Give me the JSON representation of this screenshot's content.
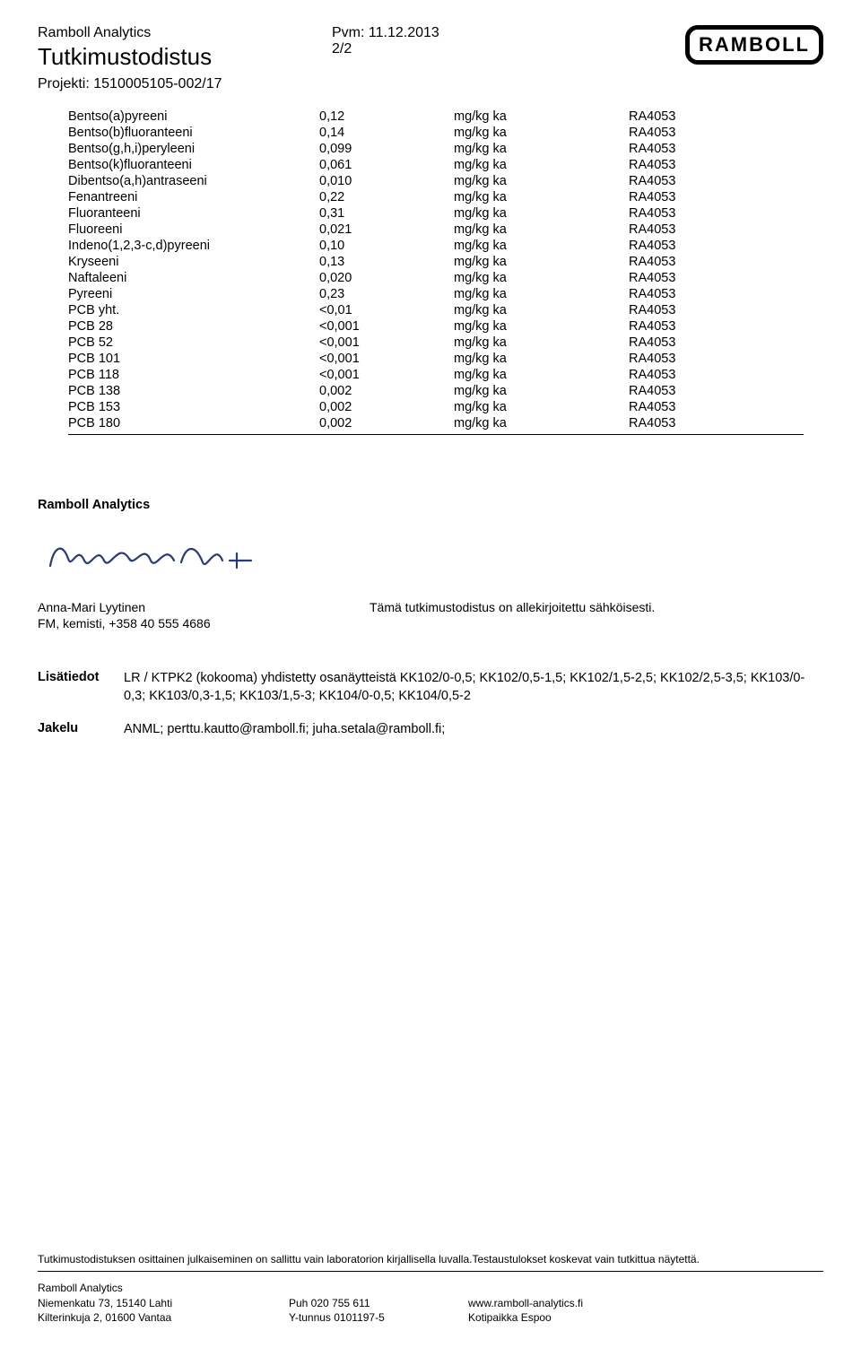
{
  "header": {
    "company": "Ramboll Analytics",
    "doc_title": "Tutkimustodistus",
    "project_label": "Projekti: 1510005105-002/17",
    "pvm_label": "Pvm: 11.12.2013",
    "page": "2/2",
    "logo_text": "RAMBOLL"
  },
  "table": {
    "rows": [
      {
        "name": "Bentso(a)pyreeni",
        "value": "0,12",
        "unit": "mg/kg ka",
        "code": "RA4053"
      },
      {
        "name": "Bentso(b)fluoranteeni",
        "value": "0,14",
        "unit": "mg/kg ka",
        "code": "RA4053"
      },
      {
        "name": "Bentso(g,h,i)peryleeni",
        "value": "0,099",
        "unit": "mg/kg ka",
        "code": "RA4053"
      },
      {
        "name": "Bentso(k)fluoranteeni",
        "value": "0,061",
        "unit": "mg/kg ka",
        "code": "RA4053"
      },
      {
        "name": "Dibentso(a,h)antraseeni",
        "value": "0,010",
        "unit": "mg/kg ka",
        "code": "RA4053"
      },
      {
        "name": "Fenantreeni",
        "value": "0,22",
        "unit": "mg/kg ka",
        "code": "RA4053"
      },
      {
        "name": "Fluoranteeni",
        "value": "0,31",
        "unit": "mg/kg ka",
        "code": "RA4053"
      },
      {
        "name": "Fluoreeni",
        "value": "0,021",
        "unit": "mg/kg ka",
        "code": "RA4053"
      },
      {
        "name": "Indeno(1,2,3-c,d)pyreeni",
        "value": "0,10",
        "unit": "mg/kg ka",
        "code": "RA4053"
      },
      {
        "name": "Kryseeni",
        "value": "0,13",
        "unit": "mg/kg ka",
        "code": "RA4053"
      },
      {
        "name": "Naftaleeni",
        "value": "0,020",
        "unit": "mg/kg ka",
        "code": "RA4053"
      },
      {
        "name": "Pyreeni",
        "value": "0,23",
        "unit": "mg/kg ka",
        "code": "RA4053"
      },
      {
        "name": "PCB yht.",
        "value": "<0,01",
        "unit": "mg/kg ka",
        "code": "RA4053"
      },
      {
        "name": "PCB 28",
        "value": "<0,001",
        "unit": "mg/kg ka",
        "code": "RA4053"
      },
      {
        "name": "PCB 52",
        "value": "<0,001",
        "unit": "mg/kg ka",
        "code": "RA4053"
      },
      {
        "name": "PCB 101",
        "value": "<0,001",
        "unit": "mg/kg ka",
        "code": "RA4053"
      },
      {
        "name": "PCB 118",
        "value": "<0,001",
        "unit": "mg/kg ka",
        "code": "RA4053"
      },
      {
        "name": "PCB 138",
        "value": "0,002",
        "unit": "mg/kg ka",
        "code": "RA4053"
      },
      {
        "name": "PCB 153",
        "value": "0,002",
        "unit": "mg/kg ka",
        "code": "RA4053"
      },
      {
        "name": "PCB 180",
        "value": "0,002",
        "unit": "mg/kg ka",
        "code": "RA4053"
      }
    ]
  },
  "signature_block": {
    "title": "Ramboll Analytics",
    "signer_name": "Anna-Mari Lyytinen",
    "signer_title": "FM, kemisti, +358 40 555 4686",
    "esign_note": "Tämä tutkimustodistus on allekirjoitettu sähköisesti."
  },
  "info": {
    "lisatiedot_label": "Lisätiedot",
    "lisatiedot_text": "LR / KTPK2 (kokooma) yhdistetty osanäytteistä KK102/0-0,5; KK102/0,5-1,5; KK102/1,5-2,5; KK102/2,5-3,5; KK103/0-0,3; KK103/0,3-1,5; KK103/1,5-3; KK104/0-0,5; KK104/0,5-2",
    "jakelu_label": "Jakelu",
    "jakelu_text": "ANML; perttu.kautto@ramboll.fi; juha.setala@ramboll.fi;"
  },
  "footer": {
    "disclaimer": "Tutkimustodistuksen osittainen julkaiseminen on sallittu vain laboratorion kirjallisella luvalla.Testaustulokset koskevat vain tutkittua näytettä.",
    "col1_line1": "Ramboll Analytics",
    "col1_line2": "Niemenkatu 73, 15140 Lahti",
    "col1_line3": "Kilterinkuja 2, 01600 Vantaa",
    "col2_line1": "Puh 020 755 611",
    "col2_line2": "Y-tunnus 0101197-5",
    "col3_line1": "www.ramboll-analytics.fi",
    "col3_line2": "Kotipaikka Espoo"
  }
}
